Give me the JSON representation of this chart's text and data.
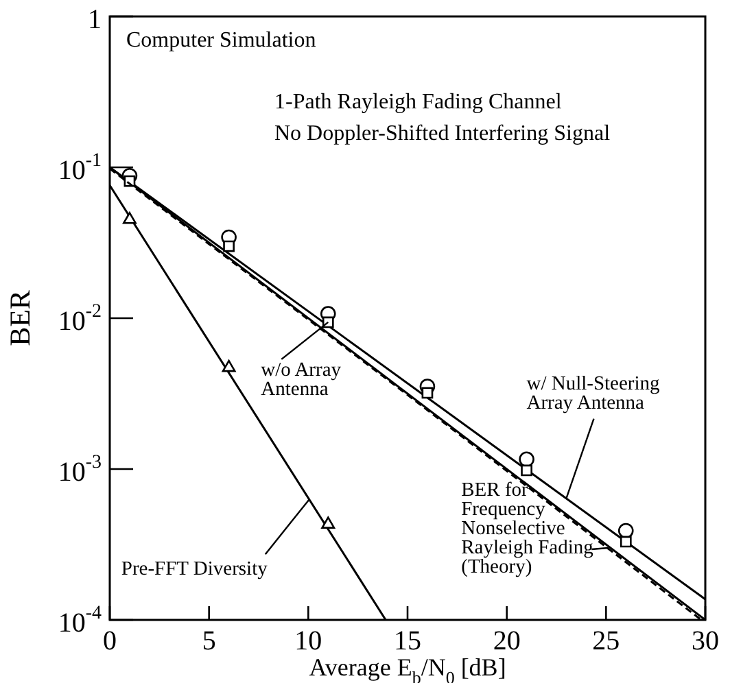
{
  "chart_data": {
    "type": "line",
    "xlabel": "Average E$_{b}$/N$_{0}$ [dB]",
    "ylabel": "BER",
    "xlim": [
      0,
      30
    ],
    "xticks": [
      0,
      5,
      10,
      15,
      20,
      25,
      30
    ],
    "ylim": [
      0.0001,
      1
    ],
    "log": "y",
    "yticks": [
      1,
      {
        "value": 0.1,
        "label": "10$^{-1}$"
      },
      {
        "value": 0.01,
        "label": "10$^{-2}$"
      },
      {
        "value": 0.001,
        "label": "10$^{-3}$"
      },
      {
        "value": 0.0001,
        "label": "10$^{-4}$"
      }
    ],
    "legend": false,
    "series": [
      {
        "color": "#000000",
        "marker": "none",
        "line_style": "solid",
        "x": [
          0,
          30
        ],
        "values": [
          0.1,
          0.000137
        ]
      },
      {
        "type": "scatter",
        "color": "#000000",
        "marker": "circle",
        "x": [
          1,
          6,
          11,
          16,
          21,
          26
        ],
        "values": [
          0.088,
          0.0344,
          0.0107,
          0.00353,
          0.00116,
          0.00039
        ]
      },
      {
        "color": "#000000",
        "marker": "none",
        "line_style": "solid",
        "x": [
          0,
          30
        ],
        "values": [
          0.1,
          0.0001
        ]
      },
      {
        "type": "scatter",
        "color": "#000000",
        "marker": "square",
        "x": [
          1,
          6,
          11,
          16,
          21,
          26
        ],
        "values": [
          0.081,
          0.03,
          0.0094,
          0.0032,
          0.00098,
          0.00033
        ]
      },
      {
        "color": "#000000",
        "marker": "none",
        "line_style": "dashed",
        "x": [
          0,
          15,
          29.8
        ],
        "values": [
          0.098,
          0.0031,
          0.0001
        ]
      },
      {
        "color": "#000000",
        "marker": "none",
        "line_style": "solid",
        "x": [
          0,
          13.9
        ],
        "values": [
          0.076,
          0.0001
        ]
      },
      {
        "type": "scatter",
        "color": "#000000",
        "marker": "triangle",
        "x": [
          1,
          6,
          11
        ],
        "values": [
          0.045,
          0.0047,
          0.00043
        ]
      }
    ],
    "annotations": [
      "Computer Simulation",
      "1-Path Rayleigh Fading Channel",
      "No Doppler-Shifted Interfering Signal",
      {
        "text": "w/o Array\nAntenna",
        "x": 11,
        "y": 0.0094
      },
      {
        "text": "w/ Null-Steering\nArray Antenna",
        "x": 23,
        "y": 0.00064
      },
      {
        "text": "BER for\nFrequency\nNonselective\nRayleigh Fading\n(Theory)",
        "x": 25.1,
        "y": 0.0003
      },
      {
        "text": "Pre-FFT Diversity",
        "x": 10.05,
        "y": 0.00063
      }
    ]
  }
}
